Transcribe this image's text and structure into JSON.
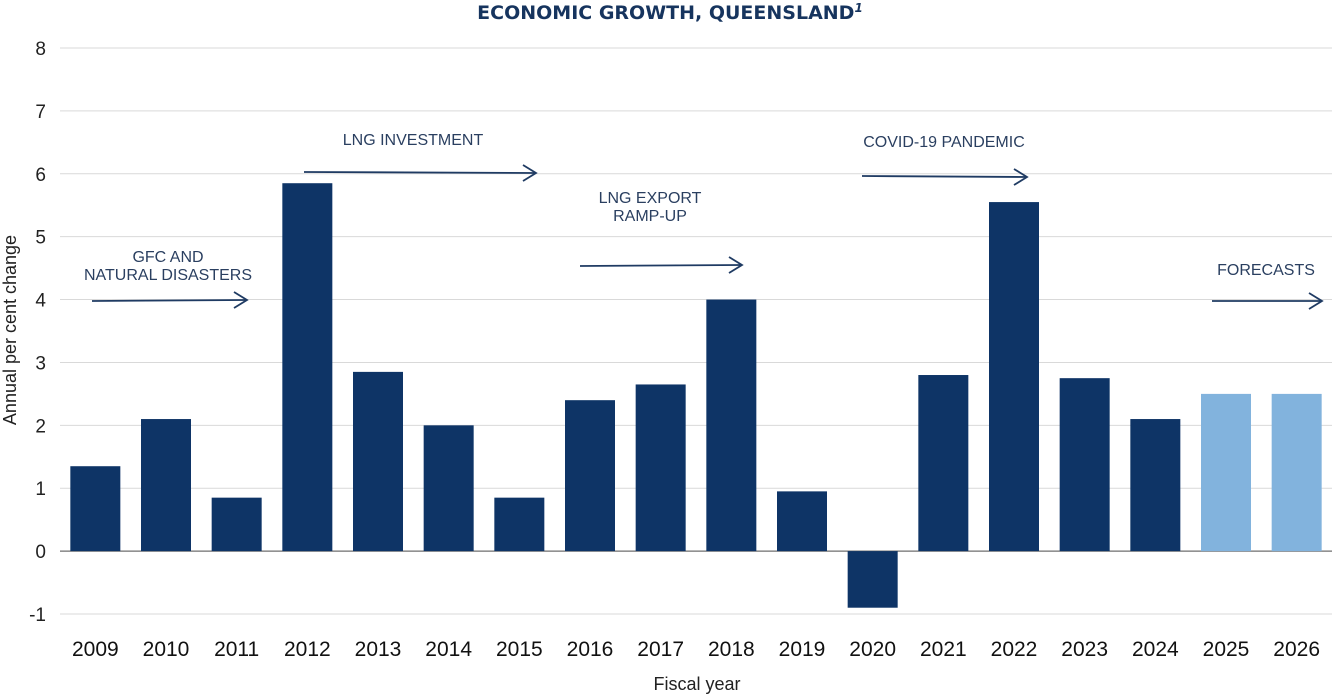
{
  "chart_data": {
    "type": "bar",
    "title": "ECONOMIC GROWTH, QUEENSLAND",
    "title_superscript": "1",
    "xlabel": "Fiscal year",
    "ylabel": "Annual per cent change",
    "ylim": [
      -1,
      8
    ],
    "yticks": [
      -1,
      0,
      1,
      2,
      3,
      4,
      5,
      6,
      7,
      8
    ],
    "grid": true,
    "categories": [
      "2009",
      "2010",
      "2011",
      "2012",
      "2013",
      "2014",
      "2015",
      "2016",
      "2017",
      "2018",
      "2019",
      "2020",
      "2021",
      "2022",
      "2023",
      "2024",
      "2025",
      "2026"
    ],
    "values": [
      1.35,
      2.1,
      0.85,
      5.85,
      2.85,
      2.0,
      0.85,
      2.4,
      2.65,
      4.0,
      0.95,
      -0.9,
      2.8,
      5.55,
      2.75,
      2.1,
      2.5,
      2.5
    ],
    "forecast": [
      false,
      false,
      false,
      false,
      false,
      false,
      false,
      false,
      false,
      false,
      false,
      false,
      false,
      false,
      false,
      false,
      true,
      true
    ],
    "colors": {
      "actual": "#0e3466",
      "forecast": "#82b3dd"
    },
    "annotations": [
      {
        "lines": [
          "GFC AND",
          "NATURAL DISASTERS"
        ],
        "period": "2009–2011"
      },
      {
        "lines": [
          "LNG INVESTMENT"
        ],
        "period": "2012–2015"
      },
      {
        "lines": [
          "LNG EXPORT",
          "RAMP-UP"
        ],
        "period": "2016–2018"
      },
      {
        "lines": [
          "COVID-19 PANDEMIC"
        ],
        "period": "2020–2022"
      },
      {
        "lines": [
          "FORECASTS"
        ],
        "period": "2025–2026"
      }
    ]
  }
}
